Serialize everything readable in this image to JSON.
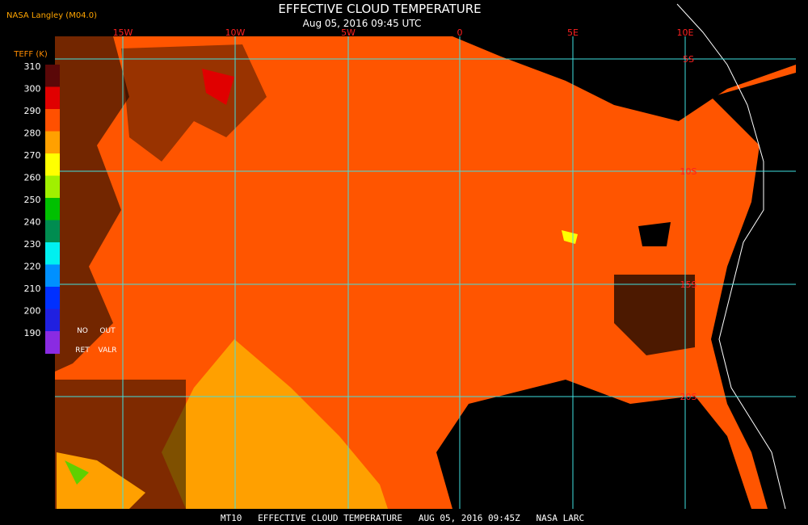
{
  "header": {
    "source": "NASA Langley (M04.0)",
    "title": "EFFECTIVE CLOUD TEMPERATURE",
    "subtitle": "Aug 05, 2016 09:45 UTC"
  },
  "legend": {
    "title": "TEFF (K)",
    "labels": [
      "310",
      "300",
      "290",
      "280",
      "270",
      "260",
      "250",
      "240",
      "230",
      "220",
      "210",
      "200",
      "190"
    ],
    "colors": [
      "#5a0808",
      "#e00000",
      "#ff5000",
      "#ffa000",
      "#ffff00",
      "#a0f000",
      "#00c000",
      "#008c50",
      "#00f0f0",
      "#0090ff",
      "#0030ff",
      "#2020e0",
      "#8a2be2"
    ],
    "no_ret": [
      "NO",
      "RET"
    ],
    "out_valr": [
      "OUT",
      "VALR"
    ]
  },
  "grid": {
    "lon_labels": [
      "15W",
      "10W",
      "5W",
      "0",
      "5E",
      "10E"
    ],
    "lat_labels": [
      "5S",
      "10S",
      "15S",
      "20S"
    ]
  },
  "footer": "MT10   EFFECTIVE CLOUD TEMPERATURE   AUG 05, 2016 09:45Z   NASA LARC"
}
